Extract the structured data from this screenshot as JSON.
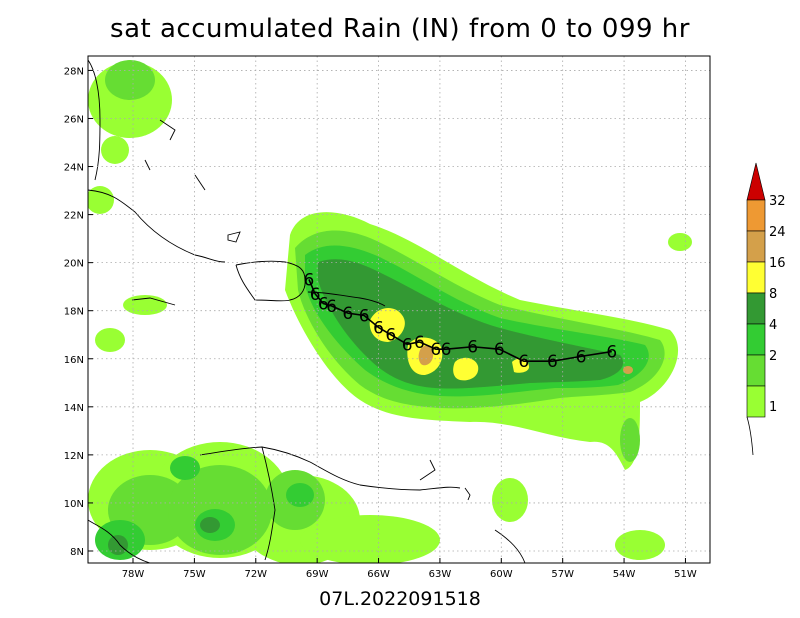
{
  "title": "sat accumulated Rain (IN) from 0 to 099 hr",
  "footer": "07L.2022091518",
  "map": {
    "lon_range": [
      -80.2,
      -49.8
    ],
    "lat_range": [
      7.5,
      28.6
    ],
    "lat_ticks": [
      {
        "lat": 28,
        "label": "28N"
      },
      {
        "lat": 26,
        "label": "26N"
      },
      {
        "lat": 24,
        "label": "24N"
      },
      {
        "lat": 22,
        "label": "22N"
      },
      {
        "lat": 20,
        "label": "20N"
      },
      {
        "lat": 18,
        "label": "18N"
      },
      {
        "lat": 16,
        "label": "16N"
      },
      {
        "lat": 14,
        "label": "14N"
      },
      {
        "lat": 12,
        "label": "12N"
      },
      {
        "lat": 10,
        "label": "10N"
      },
      {
        "lat": 8,
        "label": "8N"
      }
    ],
    "lon_ticks": [
      {
        "lon": -78,
        "label": "78W"
      },
      {
        "lon": -75,
        "label": "75W"
      },
      {
        "lon": -72,
        "label": "72W"
      },
      {
        "lon": -69,
        "label": "69W"
      },
      {
        "lon": -66,
        "label": "66W"
      },
      {
        "lon": -63,
        "label": "63W"
      },
      {
        "lon": -60,
        "label": "60W"
      },
      {
        "lon": -57,
        "label": "57W"
      },
      {
        "lon": -54,
        "label": "54W"
      },
      {
        "lon": -51,
        "label": "51W"
      }
    ]
  },
  "colorbar": {
    "levels": [
      {
        "label": "32",
        "color": "#ee9933"
      },
      {
        "label": "24",
        "color": "#d4a04a"
      },
      {
        "label": "16",
        "color": "#ffff33"
      },
      {
        "label": "8",
        "color": "#339933"
      },
      {
        "label": "4",
        "color": "#33cc33"
      },
      {
        "label": "2",
        "color": "#66dd33"
      },
      {
        "label": "1",
        "color": "#99ff33"
      }
    ],
    "top_color": "#cc0000"
  },
  "track": [
    {
      "lon": -54.6,
      "lat": 16.3
    },
    {
      "lon": -56.1,
      "lat": 16.1
    },
    {
      "lon": -57.5,
      "lat": 15.9
    },
    {
      "lon": -58.9,
      "lat": 15.9
    },
    {
      "lon": -60.1,
      "lat": 16.4
    },
    {
      "lon": -61.4,
      "lat": 16.5
    },
    {
      "lon": -62.7,
      "lat": 16.4
    },
    {
      "lon": -63.2,
      "lat": 16.4
    },
    {
      "lon": -64.0,
      "lat": 16.7
    },
    {
      "lon": -64.6,
      "lat": 16.6
    },
    {
      "lon": -65.4,
      "lat": 17.0
    },
    {
      "lon": -66.0,
      "lat": 17.3
    },
    {
      "lon": -66.7,
      "lat": 17.8
    },
    {
      "lon": -67.5,
      "lat": 17.9
    },
    {
      "lon": -68.3,
      "lat": 18.2
    },
    {
      "lon": -68.7,
      "lat": 18.3
    },
    {
      "lon": -69.1,
      "lat": 18.7
    },
    {
      "lon": -69.4,
      "lat": 19.3
    }
  ],
  "storm_symbol": "6"
}
